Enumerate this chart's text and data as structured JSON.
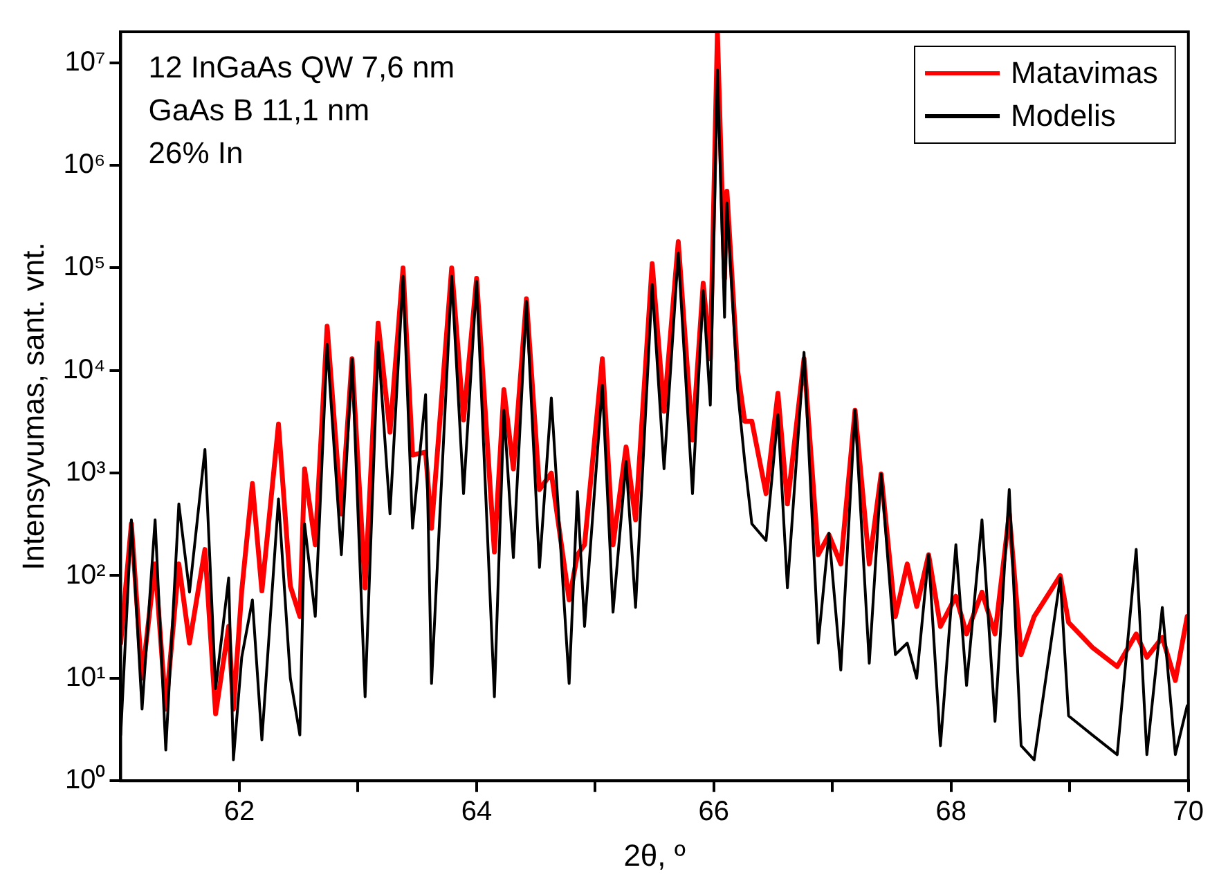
{
  "chart_data": {
    "type": "line",
    "xlabel": "2θ, º",
    "ylabel": "Intensyvumas, sant. vnt.",
    "log": "y",
    "grid": false,
    "legend": "top right",
    "marker": "none",
    "annotations": [
      "12 InGaAs QW 7,6 nm",
      "GaAs B 11,1 nm",
      "26% In"
    ],
    "xlim": [
      61,
      70
    ],
    "xticks": [
      62,
      {
        "value": 63,
        "label": null
      },
      64,
      {
        "value": 65,
        "label": null
      },
      66,
      {
        "value": 67,
        "label": null
      },
      68,
      {
        "value": 69,
        "label": null
      },
      70
    ],
    "ylim": [
      1,
      20000000
    ],
    "yticks": [
      {
        "value": 1,
        "label": "10⁰"
      },
      {
        "value": 10,
        "label": "10¹"
      },
      {
        "value": 100,
        "label": "10²"
      },
      {
        "value": 1000,
        "label": "10³"
      },
      {
        "value": 10000,
        "label": "10⁴"
      },
      {
        "value": 100000,
        "label": "10⁵"
      },
      {
        "value": 1000000,
        "label": "10⁶"
      },
      {
        "value": 10000000,
        "label": "10⁷"
      }
    ],
    "x": [
      61.0,
      61.09,
      61.18,
      61.29,
      61.38,
      61.49,
      61.58,
      61.71,
      61.8,
      61.91,
      61.95,
      62.02,
      62.11,
      62.19,
      62.33,
      62.43,
      62.51,
      62.55,
      62.64,
      62.74,
      62.86,
      62.95,
      63.06,
      63.17,
      63.27,
      63.38,
      63.46,
      63.57,
      63.62,
      63.79,
      63.89,
      64.0,
      64.15,
      64.23,
      64.31,
      64.42,
      64.53,
      64.63,
      64.78,
      64.85,
      64.91,
      65.06,
      65.15,
      65.26,
      65.34,
      65.48,
      65.58,
      65.7,
      65.82,
      65.91,
      65.97,
      66.03,
      66.09,
      66.11,
      66.2,
      66.26,
      66.32,
      66.44,
      66.54,
      66.62,
      66.76,
      66.88,
      66.97,
      67.07,
      67.19,
      67.31,
      67.41,
      67.53,
      67.63,
      67.71,
      67.81,
      67.91,
      68.04,
      68.13,
      68.26,
      68.37,
      68.49,
      68.59,
      68.7,
      68.92,
      68.99,
      69.19,
      69.4,
      69.56,
      69.65,
      69.78,
      69.89,
      69.99
    ],
    "series": [
      {
        "name": "Matavimas",
        "color": "#ff0000",
        "values": [
          22,
          320,
          10,
          130,
          5,
          130,
          22,
          180,
          4.5,
          32,
          5,
          71,
          790,
          71,
          3000,
          79,
          40,
          1100,
          200,
          27000,
          400,
          13000,
          76,
          29000,
          2500,
          100000,
          1500,
          1600,
          290,
          100000,
          3300,
          79000,
          170,
          6500,
          1100,
          50000,
          690,
          1000,
          58,
          160,
          200,
          13000,
          200,
          1800,
          350,
          110000,
          4000,
          180000,
          2100,
          71000,
          13000,
          20000000,
          79000,
          560000,
          10000,
          3200,
          3200,
          630,
          6000,
          500,
          13000,
          160,
          250,
          130,
          4100,
          130,
          980,
          40,
          130,
          50,
          160,
          32,
          63,
          27,
          69,
          27,
          400,
          17,
          40,
          100,
          35,
          20,
          13,
          27,
          16,
          25,
          9.5,
          40
        ]
      },
      {
        "name": "Modelis",
        "color": "#000000",
        "values": [
          2.8,
          350,
          5,
          350,
          2,
          500,
          69,
          1700,
          7.9,
          95,
          1.6,
          16,
          58,
          2.5,
          560,
          10,
          2.8,
          320,
          40,
          18000,
          160,
          13000,
          6.6,
          19000,
          400,
          83000,
          290,
          5800,
          8.9,
          83000,
          630,
          74000,
          6.6,
          4100,
          150,
          47000,
          120,
          5400,
          8.9,
          660,
          32,
          7200,
          44,
          1300,
          49,
          69000,
          1100,
          140000,
          630,
          60000,
          4600,
          8500000,
          33000,
          430000,
          6500,
          1300,
          320,
          220,
          3700,
          76,
          15000,
          22,
          260,
          12,
          4100,
          14,
          980,
          17,
          22,
          10,
          160,
          2.2,
          200,
          8.5,
          350,
          3.8,
          690,
          2.2,
          1.6,
          95,
          4.3,
          2.8,
          1.8,
          180,
          1.8,
          49,
          1.8,
          5.4
        ]
      }
    ]
  }
}
